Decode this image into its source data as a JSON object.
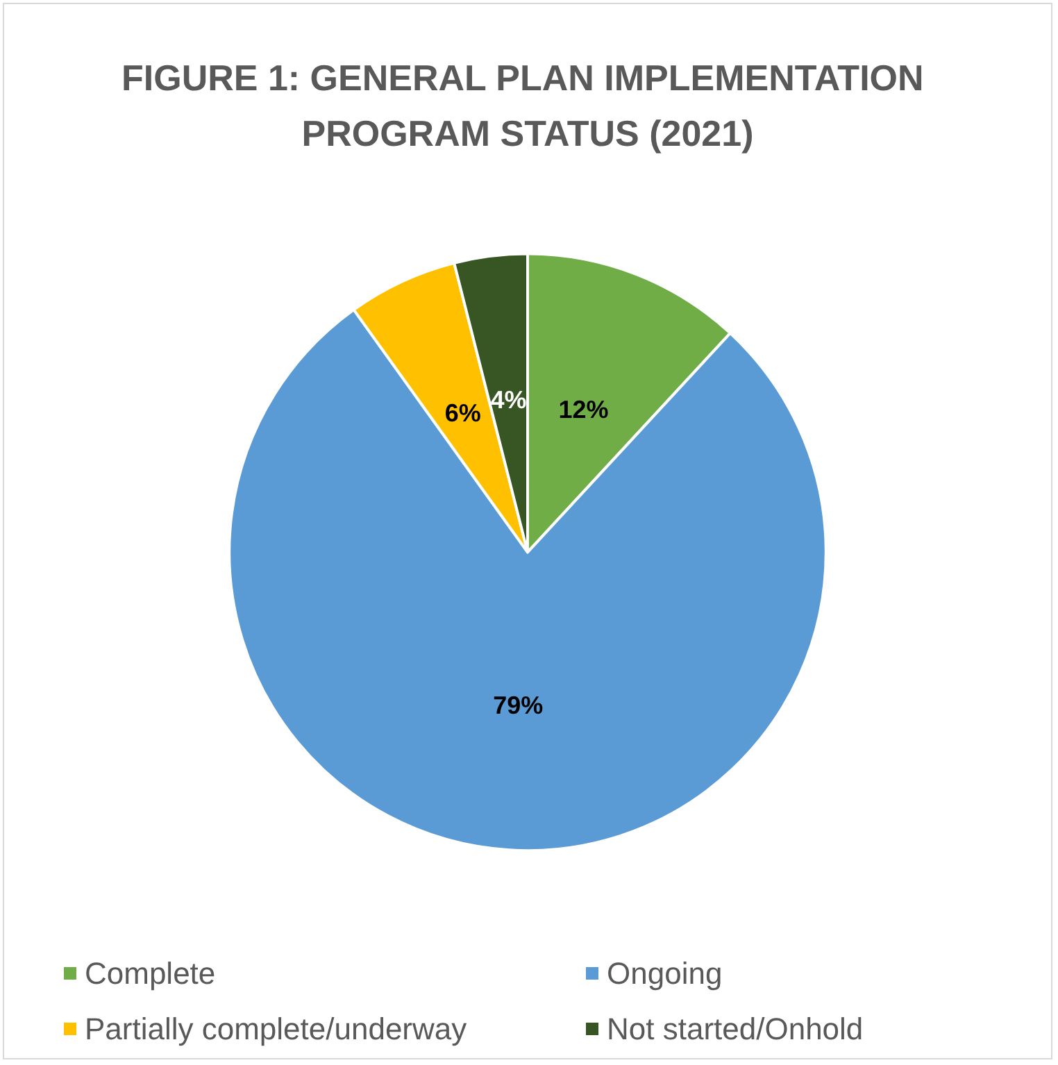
{
  "chart_data": {
    "type": "pie",
    "title": "FIGURE 1: GENERAL PLAN IMPLEMENTATION PROGRAM STATUS (2021)",
    "categories": [
      "Complete",
      "Ongoing",
      "Partially complete/underway",
      "Not started/Onhold"
    ],
    "values": [
      12,
      79,
      6,
      4
    ],
    "colors": [
      "#70ad47",
      "#5b9bd5",
      "#ffc000",
      "#375623"
    ],
    "value_labels": [
      "12%",
      "79%",
      "6%",
      "4%"
    ],
    "legend": "bottom"
  }
}
